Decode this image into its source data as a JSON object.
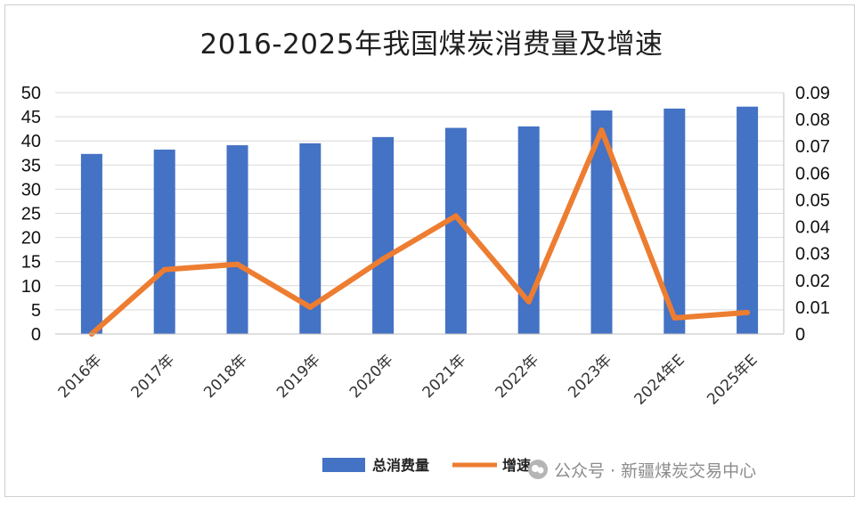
{
  "title": "2016-2025年我国煤炭消费量及增速",
  "legend": {
    "bar_label": "总消费量",
    "line_label": "增速"
  },
  "watermark": {
    "text": "公众号 · 新疆煤炭交易中心",
    "icon": "wechat-official-account-icon"
  },
  "colors": {
    "bar": "#4472C4",
    "line": "#ED7D31",
    "grid": "#d9d9d9",
    "axis": "#bfbfbf"
  },
  "chart_data": {
    "type": "bar",
    "categories": [
      "2016年",
      "2017年",
      "2018年",
      "2019年",
      "2020年",
      "2021年",
      "2022年",
      "2023年",
      "2024年E",
      "2025年E"
    ],
    "series": [
      {
        "name": "总消费量",
        "type": "bar",
        "axis": "left",
        "values": [
          37.3,
          38.2,
          39.1,
          39.5,
          40.8,
          42.7,
          43.0,
          46.3,
          46.7,
          47.1
        ]
      },
      {
        "name": "增速",
        "type": "line",
        "axis": "right",
        "values": [
          0.0,
          0.024,
          0.026,
          0.01,
          0.028,
          0.044,
          0.012,
          0.076,
          0.006,
          0.008
        ]
      }
    ],
    "left_axis": {
      "min": 0,
      "max": 50,
      "step": 5,
      "ticks": [
        "0",
        "5",
        "10",
        "15",
        "20",
        "25",
        "30",
        "35",
        "40",
        "45",
        "50"
      ]
    },
    "right_axis": {
      "min": 0,
      "max": 0.09,
      "step": 0.01,
      "ticks": [
        "0",
        "0.01",
        "0.02",
        "0.03",
        "0.04",
        "0.05",
        "0.06",
        "0.07",
        "0.08",
        "0.09"
      ]
    },
    "grid": true,
    "legend_position": "bottom"
  }
}
